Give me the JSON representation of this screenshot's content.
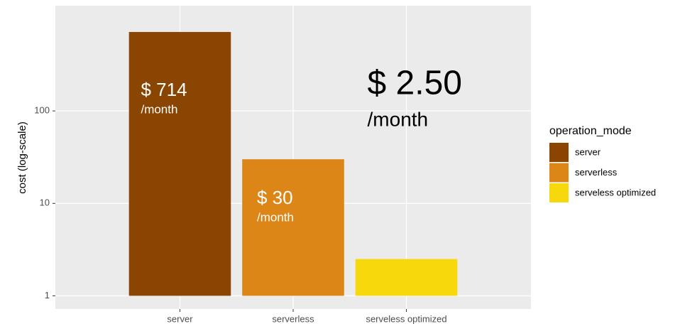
{
  "chart_data": {
    "type": "bar",
    "categories": [
      "server",
      "serverless",
      "serveless optimized"
    ],
    "values": [
      714,
      30,
      2.5
    ],
    "value_labels": [
      "$ 714",
      "$ 30",
      "$ 2.50"
    ],
    "value_label_unit": "/month",
    "colors": [
      "#8b4503",
      "#dc8618",
      "#f7d80c"
    ],
    "y_label": "cost (log-scale)",
    "log_y": true,
    "ylim": [
      0.72,
      1375
    ],
    "yticks": [
      1,
      10,
      100
    ],
    "grid": true,
    "legend_title": "operation_mode",
    "legend_position": "right"
  }
}
